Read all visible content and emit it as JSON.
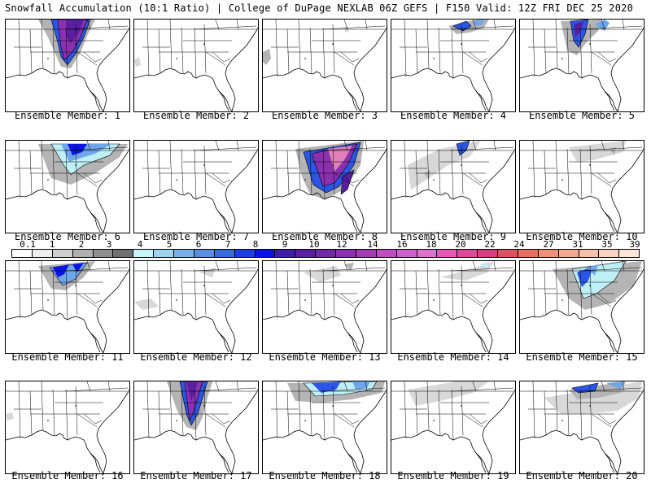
{
  "header": {
    "title_left": "Snowfall Accumulation (10:1 Ratio) | College of DuPage NEXLAB",
    "title_right": "06Z GEFS | F150 Valid: 12Z FRI DEC 25 2020"
  },
  "colorbar": {
    "labels": [
      "0.1",
      "1",
      "2",
      "3",
      "4",
      "5",
      "6",
      "7",
      "8",
      "9",
      "10",
      "12",
      "14",
      "16",
      "18",
      "20",
      "22",
      "24",
      "27",
      "31",
      "35",
      "39"
    ],
    "colors": [
      "#ffffff",
      "#eeeeee",
      "#d0d0d0",
      "#b0b0b0",
      "#909090",
      "#707070",
      "#c8f5f8",
      "#9cd4f2",
      "#78b0ea",
      "#5a8ee4",
      "#3a6ae0",
      "#1b3fe0",
      "#0a12e8",
      "#3d1ea8",
      "#5a1fa0",
      "#7328a8",
      "#8c30b0",
      "#a43cb8",
      "#c04cc4",
      "#d060cc",
      "#e070cc",
      "#e858b8",
      "#e04898",
      "#d83c80",
      "#e05060",
      "#e87060",
      "#f09078",
      "#f4a890",
      "#f8c0aa",
      "#fad4c2",
      "#fce6da"
    ]
  },
  "members": [
    {
      "label": "Ensemble Member: 1",
      "snow": "m1"
    },
    {
      "label": "Ensemble Member: 2",
      "snow": "m2"
    },
    {
      "label": "Ensemble Member: 3",
      "snow": "m3"
    },
    {
      "label": "Ensemble Member: 4",
      "snow": "m4"
    },
    {
      "label": "Ensemble Member: 5",
      "snow": "m5"
    },
    {
      "label": "Ensemble Member: 6",
      "snow": "m6"
    },
    {
      "label": "Ensemble Member: 7",
      "snow": "m7"
    },
    {
      "label": "Ensemble Member: 8",
      "snow": "m8"
    },
    {
      "label": "Ensemble Member: 9",
      "snow": "m9"
    },
    {
      "label": "Ensemble Member: 10",
      "snow": "m10"
    },
    {
      "label": "Ensemble Member: 11",
      "snow": "m11"
    },
    {
      "label": "Ensemble Member: 12",
      "snow": "m12"
    },
    {
      "label": "Ensemble Member: 13",
      "snow": "m13"
    },
    {
      "label": "Ensemble Member: 14",
      "snow": "m14"
    },
    {
      "label": "Ensemble Member: 15",
      "snow": "m15"
    },
    {
      "label": "Ensemble Member: 16",
      "snow": "m16"
    },
    {
      "label": "Ensemble Member: 17",
      "snow": "m17"
    },
    {
      "label": "Ensemble Member: 18",
      "snow": "m18"
    },
    {
      "label": "Ensemble Member: 19",
      "snow": "m19"
    },
    {
      "label": "Ensemble Member: 20",
      "snow": "m20"
    }
  ]
}
